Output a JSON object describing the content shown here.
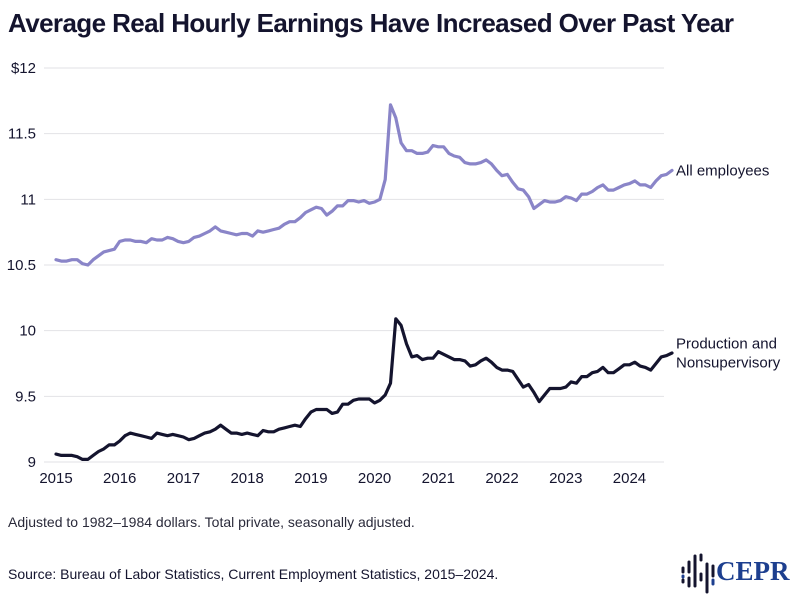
{
  "title": "Average Real Hourly Earnings Have Increased Over Past Year",
  "note": "Adjusted to 1982–1984 dollars. Total private, seasonally adjusted.",
  "source": "Source: Bureau of Labor Statistics, Current Employment Statistics, 2015–2024.",
  "logo": {
    "text": "CEPR",
    "icon": "cepr-bars-icon",
    "color": "#1d3f8f"
  },
  "chart_data": {
    "type": "line",
    "title": "Average Real Hourly Earnings Have Increased Over Past Year",
    "xlabel": "",
    "ylabel": "",
    "ylim": [
      9,
      12
    ],
    "yticks": [
      {
        "value": 12,
        "label": "$12"
      },
      {
        "value": 11.5,
        "label": "11.5"
      },
      {
        "value": 11,
        "label": "11"
      },
      {
        "value": 10.5,
        "label": "10.5"
      },
      {
        "value": 10,
        "label": "10"
      },
      {
        "value": 9.5,
        "label": "9.5"
      },
      {
        "value": 9,
        "label": "9"
      }
    ],
    "xticks": [
      "2015",
      "2016",
      "2017",
      "2018",
      "2019",
      "2020",
      "2021",
      "2022",
      "2023",
      "2024"
    ],
    "x_start": "2015-01",
    "x_frequency": "monthly",
    "grid": true,
    "legend": "direct-labels-right",
    "series": [
      {
        "name": "All employees",
        "label_lines": [
          "All employees"
        ],
        "color": "#8a85c8",
        "values": [
          10.54,
          10.53,
          10.53,
          10.54,
          10.54,
          10.51,
          10.5,
          10.54,
          10.57,
          10.6,
          10.61,
          10.62,
          10.68,
          10.69,
          10.69,
          10.68,
          10.68,
          10.67,
          10.7,
          10.69,
          10.69,
          10.71,
          10.7,
          10.68,
          10.67,
          10.68,
          10.71,
          10.72,
          10.74,
          10.76,
          10.79,
          10.76,
          10.75,
          10.74,
          10.73,
          10.74,
          10.74,
          10.72,
          10.76,
          10.75,
          10.76,
          10.77,
          10.78,
          10.81,
          10.83,
          10.83,
          10.86,
          10.9,
          10.92,
          10.94,
          10.93,
          10.88,
          10.91,
          10.95,
          10.95,
          10.99,
          10.99,
          10.98,
          10.99,
          10.97,
          10.98,
          11.0,
          11.15,
          11.72,
          11.62,
          11.43,
          11.37,
          11.37,
          11.35,
          11.35,
          11.36,
          11.41,
          11.4,
          11.4,
          11.35,
          11.33,
          11.32,
          11.28,
          11.27,
          11.27,
          11.28,
          11.3,
          11.27,
          11.22,
          11.18,
          11.19,
          11.13,
          11.08,
          11.07,
          11.02,
          10.93,
          10.96,
          10.99,
          10.98,
          10.98,
          10.99,
          11.02,
          11.01,
          10.99,
          11.04,
          11.04,
          11.06,
          11.09,
          11.11,
          11.07,
          11.07,
          11.09,
          11.11,
          11.12,
          11.14,
          11.11,
          11.11,
          11.09,
          11.14,
          11.18,
          11.19,
          11.22
        ]
      },
      {
        "name": "Production and Nonsupervisory",
        "label_lines": [
          "Production and",
          "Nonsupervisory"
        ],
        "color": "#14142e",
        "values": [
          9.06,
          9.05,
          9.05,
          9.05,
          9.04,
          9.02,
          9.02,
          9.05,
          9.08,
          9.1,
          9.13,
          9.13,
          9.16,
          9.2,
          9.22,
          9.21,
          9.2,
          9.19,
          9.18,
          9.22,
          9.21,
          9.2,
          9.21,
          9.2,
          9.19,
          9.17,
          9.18,
          9.2,
          9.22,
          9.23,
          9.25,
          9.28,
          9.25,
          9.22,
          9.22,
          9.21,
          9.22,
          9.21,
          9.2,
          9.24,
          9.23,
          9.23,
          9.25,
          9.26,
          9.27,
          9.28,
          9.27,
          9.33,
          9.38,
          9.4,
          9.4,
          9.4,
          9.37,
          9.38,
          9.44,
          9.44,
          9.47,
          9.48,
          9.48,
          9.48,
          9.45,
          9.47,
          9.51,
          9.6,
          10.09,
          10.04,
          9.9,
          9.8,
          9.81,
          9.78,
          9.79,
          9.79,
          9.84,
          9.82,
          9.8,
          9.78,
          9.78,
          9.77,
          9.73,
          9.74,
          9.77,
          9.79,
          9.76,
          9.72,
          9.7,
          9.7,
          9.69,
          9.63,
          9.57,
          9.59,
          9.53,
          9.46,
          9.51,
          9.56,
          9.56,
          9.56,
          9.57,
          9.61,
          9.6,
          9.65,
          9.65,
          9.68,
          9.69,
          9.72,
          9.68,
          9.68,
          9.71,
          9.74,
          9.74,
          9.76,
          9.73,
          9.72,
          9.7,
          9.75,
          9.8,
          9.81,
          9.83
        ]
      }
    ]
  }
}
